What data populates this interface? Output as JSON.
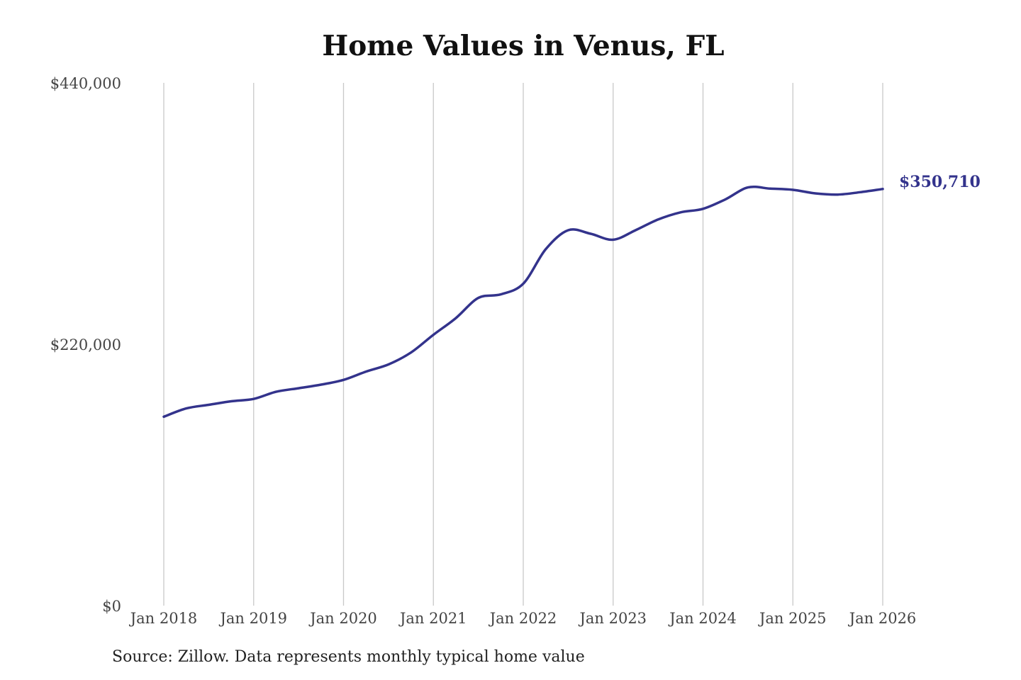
{
  "chart_data": {
    "type": "line",
    "title": "Home Values in Venus, FL",
    "xlabel": "",
    "ylabel": "",
    "ylim": [
      0,
      440000
    ],
    "y_ticks": [
      {
        "value": 0,
        "label": "$0"
      },
      {
        "value": 220000,
        "label": "$220,000"
      },
      {
        "value": 440000,
        "label": "$440,000"
      }
    ],
    "x_ticks": [
      {
        "value": 2018,
        "label": "Jan 2018"
      },
      {
        "value": 2019,
        "label": "Jan 2019"
      },
      {
        "value": 2020,
        "label": "Jan 2020"
      },
      {
        "value": 2021,
        "label": "Jan 2021"
      },
      {
        "value": 2022,
        "label": "Jan 2022"
      },
      {
        "value": 2023,
        "label": "Jan 2023"
      },
      {
        "value": 2024,
        "label": "Jan 2024"
      },
      {
        "value": 2025,
        "label": "Jan 2025"
      },
      {
        "value": 2026,
        "label": "Jan 2026"
      }
    ],
    "xlim": [
      2018,
      2026
    ],
    "grid": {
      "vertical": true,
      "horizontal": false
    },
    "line_color": "#33338c",
    "series": [
      {
        "name": "",
        "points": [
          [
            2018.0,
            159000
          ],
          [
            2018.25,
            166000
          ],
          [
            2018.5,
            169000
          ],
          [
            2018.75,
            172000
          ],
          [
            2019.0,
            174000
          ],
          [
            2019.25,
            180000
          ],
          [
            2019.5,
            183000
          ],
          [
            2019.75,
            186000
          ],
          [
            2020.0,
            190000
          ],
          [
            2020.25,
            197000
          ],
          [
            2020.5,
            203000
          ],
          [
            2020.75,
            213000
          ],
          [
            2021.0,
            228000
          ],
          [
            2021.25,
            242000
          ],
          [
            2021.5,
            259000
          ],
          [
            2021.75,
            262000
          ],
          [
            2022.0,
            271000
          ],
          [
            2022.25,
            300000
          ],
          [
            2022.5,
            316000
          ],
          [
            2022.75,
            313000
          ],
          [
            2023.0,
            308000
          ],
          [
            2023.25,
            316000
          ],
          [
            2023.5,
            325000
          ],
          [
            2023.75,
            331000
          ],
          [
            2024.0,
            334000
          ],
          [
            2024.25,
            342000
          ],
          [
            2024.5,
            352000
          ],
          [
            2024.75,
            351000
          ],
          [
            2025.0,
            350000
          ],
          [
            2025.25,
            347000
          ],
          [
            2025.5,
            346000
          ],
          [
            2025.75,
            348000
          ],
          [
            2026.0,
            350710
          ]
        ]
      }
    ],
    "end_label": "$350,710",
    "source": "Source: Zillow. Data represents monthly typical home value"
  }
}
